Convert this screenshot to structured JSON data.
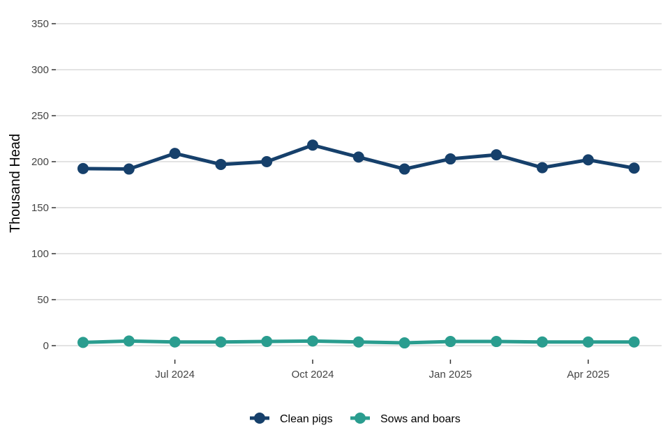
{
  "chart_data": {
    "type": "line",
    "ylabel": "Thousand Head",
    "xlabel": "",
    "ylim": [
      0,
      350
    ],
    "yticks": [
      0,
      50,
      100,
      150,
      200,
      250,
      300,
      350
    ],
    "grid": true,
    "legend_position": "bottom",
    "x": [
      "2024-05",
      "2024-06",
      "2024-07",
      "2024-08",
      "2024-09",
      "2024-10",
      "2024-11",
      "2024-12",
      "2025-01",
      "2025-02",
      "2025-03",
      "2025-04",
      "2025-05"
    ],
    "xticks": [
      {
        "at": "2024-07",
        "label": "Jul 2024"
      },
      {
        "at": "2024-10",
        "label": "Oct 2024"
      },
      {
        "at": "2025-01",
        "label": "Jan 2025"
      },
      {
        "at": "2025-04",
        "label": "Apr 2025"
      }
    ],
    "series": [
      {
        "name": "Clean pigs",
        "color": "#16406b",
        "values": [
          192.5,
          192,
          209,
          197,
          200,
          218,
          205,
          192,
          203,
          207.5,
          193.5,
          202,
          193
        ]
      },
      {
        "name": "Sows and boars",
        "color": "#2a9d8f",
        "values": [
          3.5,
          5,
          4,
          4,
          4.5,
          5,
          4,
          3,
          4.5,
          4.5,
          4,
          4,
          4
        ]
      }
    ]
  }
}
